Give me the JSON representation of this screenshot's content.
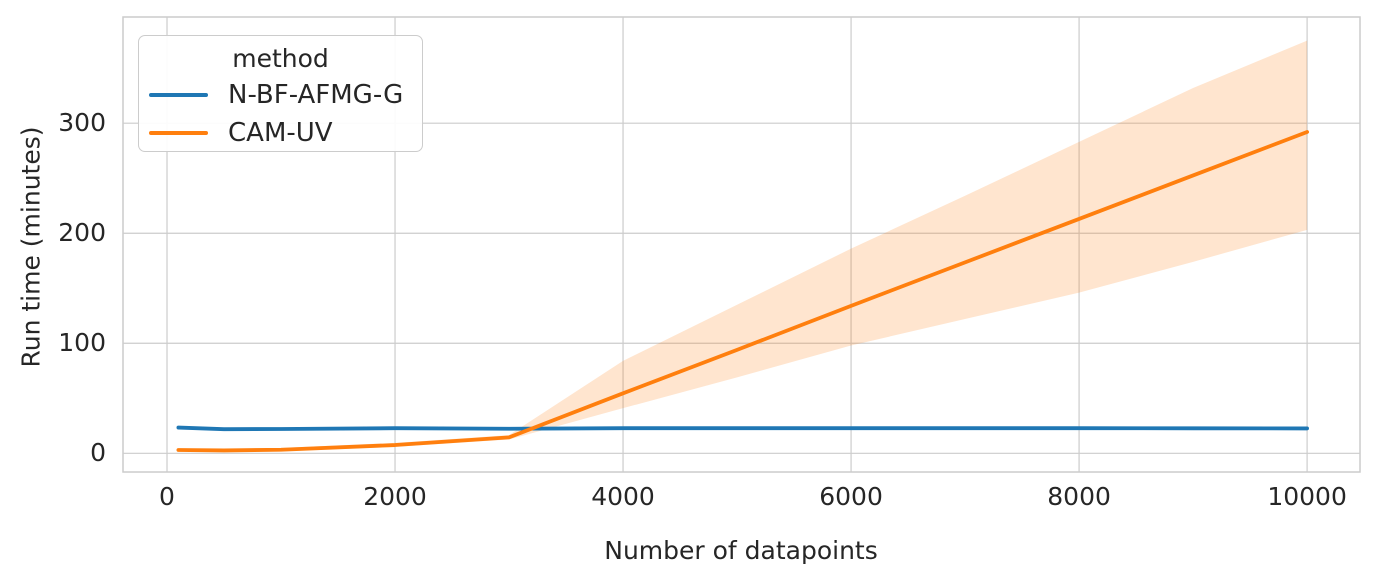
{
  "chart_data": {
    "type": "line",
    "xlabel": "Number of datapoints",
    "ylabel": "Run time (minutes)",
    "x_ticks": [
      "0",
      "2000",
      "4000",
      "6000",
      "8000",
      "10000"
    ],
    "x_tick_values": [
      0,
      2000,
      4000,
      6000,
      8000,
      10000
    ],
    "y_ticks": [
      "0",
      "100",
      "200",
      "300"
    ],
    "y_tick_values": [
      0,
      100,
      200,
      300
    ],
    "xlim": [
      -386,
      10464
    ],
    "ylim": [
      -17,
      396.5
    ],
    "grid": true,
    "grid_color": "#cccccc",
    "spine_color": "#cccccc",
    "text_color": "#262626",
    "background_color": "#ffffff",
    "line_width": 3.8,
    "legend": {
      "title": "method",
      "position": "upper left"
    },
    "x": [
      100,
      500,
      1000,
      2000,
      3000,
      4000,
      5000,
      6000,
      7000,
      8000,
      9000,
      10000
    ],
    "series": [
      {
        "name": "N-BF-AFMG-G",
        "color": "#1f77b4",
        "values": [
          23.4,
          21.9,
          22.1,
          22.8,
          22.3,
          22.8,
          22.8,
          22.8,
          22.8,
          22.8,
          22.7,
          22.6
        ]
      },
      {
        "name": "CAM-UV",
        "color": "#ff7f0e",
        "values": [
          3,
          2.6,
          3.2,
          7.5,
          14.5,
          54.5,
          94,
          134,
          173.5,
          213,
          252.5,
          292
        ],
        "band_upper": [
          4.5,
          4,
          4.8,
          9.5,
          16.5,
          84,
          135,
          186,
          234,
          283,
          332,
          375
        ],
        "band_lower": [
          1.8,
          1.4,
          2,
          5.8,
          12.5,
          41,
          69,
          98,
          122,
          146,
          174,
          203
        ],
        "band_opacity": 0.2
      }
    ]
  }
}
